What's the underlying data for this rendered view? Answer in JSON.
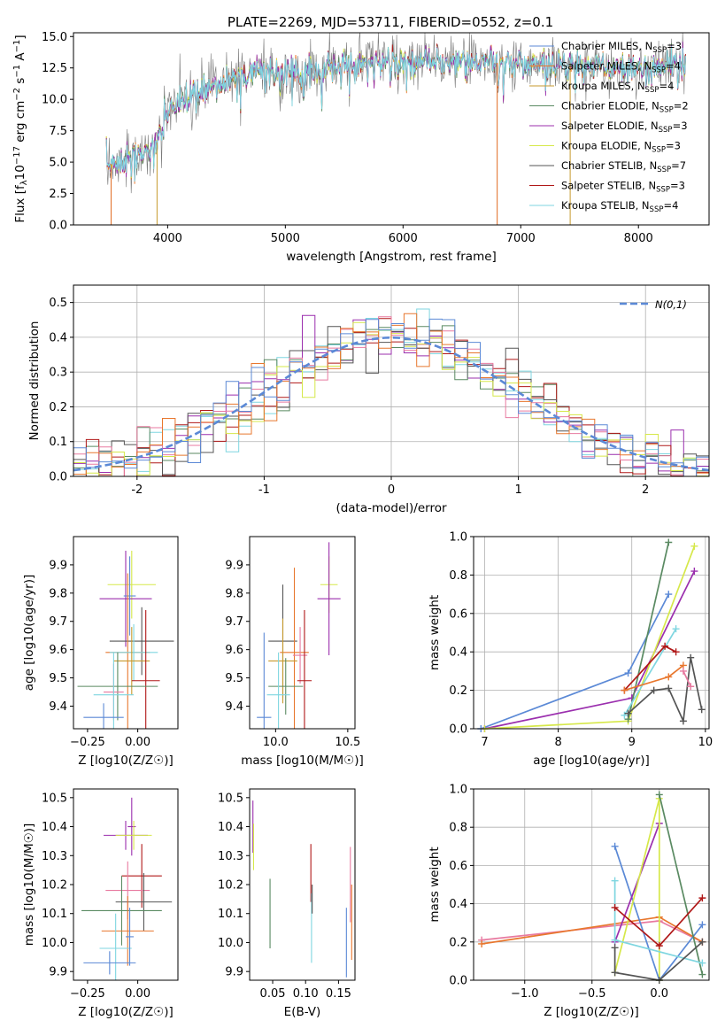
{
  "figure": {
    "title": "PLATE=2269, MJD=53711, FIBERID=0552, z=0.1"
  },
  "models": [
    {
      "name": "Chabrier MILES, N_SSP=3",
      "color": "#5b89d6"
    },
    {
      "name": "Salpeter MILES, N_SSP=4",
      "color": "#e8772e"
    },
    {
      "name": "Kroupa MILES, N_SSP=4",
      "color": "#c79a2e"
    },
    {
      "name": "Chabrier ELODIE, N_SSP=2",
      "color": "#5a8a62"
    },
    {
      "name": "Salpeter ELODIE, N_SSP=3",
      "color": "#9b2fae"
    },
    {
      "name": "Kroupa ELODIE, N_SSP=3",
      "color": "#d6e84a"
    },
    {
      "name": "Chabrier STELIB, N_SSP=7",
      "color": "#555555"
    },
    {
      "name": "Salpeter STELIB, N_SSP=3",
      "color": "#b01818"
    },
    {
      "name": "Kroupa STELIB, N_SSP=4",
      "color": "#7fd6e0"
    }
  ],
  "extra_colors": {
    "pink": "#e87aa0",
    "orange2": "#e06a20"
  },
  "chart_data": [
    {
      "id": "spectrum",
      "type": "line",
      "xlabel": "wavelength [Angstrom, rest frame]",
      "ylabel": "Flux [f_λ 10^-17 erg cm^-2 s^-1 A^-1]",
      "xlim": [
        3200,
        8600
      ],
      "ylim": [
        0,
        15.3
      ],
      "xticks": [
        4000,
        5000,
        6000,
        7000,
        8000
      ],
      "yticks": [
        0.0,
        2.5,
        5.0,
        7.5,
        10.0,
        12.5,
        15.0
      ],
      "ytick_labels": [
        "0.0",
        "2.5",
        "5.0",
        "7.5",
        "10.0",
        "12.5",
        "15.0"
      ],
      "continuum": {
        "x": [
          3500,
          3700,
          3900,
          4000,
          4200,
          4400,
          4600,
          4800,
          5000,
          5200,
          5400,
          5600,
          5800,
          6000,
          6200,
          6400,
          6600,
          6800,
          7000,
          7200,
          7400,
          7600,
          7800,
          8000,
          8200,
          8400
        ],
        "y": [
          4.8,
          5.3,
          6.3,
          9.0,
          10.3,
          11.2,
          11.8,
          12.1,
          12.3,
          12.2,
          12.6,
          12.8,
          12.9,
          13.0,
          13.0,
          13.0,
          12.9,
          12.9,
          12.8,
          12.8,
          12.8,
          12.6,
          12.5,
          12.4,
          12.6,
          12.8
        ]
      },
      "spikes": [
        3520,
        3910,
        6800,
        7420
      ],
      "legend": "upper right"
    },
    {
      "id": "residuals",
      "type": "step-histogram",
      "xlabel": "(data-model)/error",
      "ylabel": "Normed distribution",
      "xlim": [
        -2.5,
        2.5
      ],
      "ylim": [
        0,
        0.55
      ],
      "xticks": [
        -2,
        -1,
        0,
        1,
        2
      ],
      "yticks": [
        0.0,
        0.1,
        0.2,
        0.3,
        0.4,
        0.5
      ],
      "ytick_labels": [
        "0.0",
        "0.1",
        "0.2",
        "0.3",
        "0.4",
        "0.5"
      ],
      "bin_width": 0.1,
      "reference_label": "N(0,1)",
      "legend": "upper right",
      "grid": true
    },
    {
      "id": "age-vs-Z",
      "type": "errorbar",
      "xlabel": "Z [log10(Z/Z☉)]",
      "ylabel": "age  [log10(age/yr)]",
      "xlim": [
        -0.32,
        0.2
      ],
      "ylim": [
        9.32,
        10.0
      ],
      "xticks": [
        -0.25,
        0.0
      ],
      "xtick_labels": [
        "−0.25",
        "0.00"
      ],
      "yticks": [
        9.4,
        9.5,
        9.6,
        9.7,
        9.8,
        9.9
      ],
      "ytick_labels": [
        "9.4",
        "9.5",
        "9.6",
        "9.7",
        "9.8",
        "9.9"
      ],
      "points": [
        {
          "x": -0.03,
          "y": 9.83,
          "xerr": 0.12,
          "yerr": 0.12,
          "c": 5
        },
        {
          "x": -0.06,
          "y": 9.78,
          "xerr": 0.13,
          "yerr": 0.17,
          "c": 4
        },
        {
          "x": -0.04,
          "y": 9.79,
          "xerr": 0.03,
          "yerr": 0.14,
          "c": 0
        },
        {
          "x": 0.02,
          "y": 9.63,
          "xerr": 0.16,
          "yerr": 0.12,
          "c": 6
        },
        {
          "x": -0.05,
          "y": 9.59,
          "xerr": 0.11,
          "yerr": 0.28,
          "c": 1
        },
        {
          "x": -0.02,
          "y": 9.59,
          "xerr": 0.12,
          "yerr": 0.1,
          "c": 8
        },
        {
          "x": -0.03,
          "y": 9.56,
          "xerr": 0.09,
          "yerr": 0.12,
          "c": 2
        },
        {
          "x": 0.04,
          "y": 9.49,
          "xerr": 0.07,
          "yerr": 0.25,
          "c": 7
        },
        {
          "x": -0.1,
          "y": 9.47,
          "xerr": 0.2,
          "yerr": 0.12,
          "c": 3
        },
        {
          "x": -0.12,
          "y": 9.45,
          "xerr": 0.05,
          "yerr": 0.1,
          "c": 9
        },
        {
          "x": -0.12,
          "y": 9.44,
          "xerr": 0.1,
          "yerr": 0.15,
          "c": 8
        },
        {
          "x": -0.17,
          "y": 9.36,
          "xerr": 0.1,
          "yerr": 0.05,
          "c": 0
        }
      ]
    },
    {
      "id": "age-vs-mass",
      "type": "errorbar",
      "xlabel": "mass [log10(M/M☉)]",
      "ylabel": "",
      "xlim": [
        9.82,
        10.55
      ],
      "ylim": [
        9.32,
        10.0
      ],
      "xticks": [
        10.0,
        10.5
      ],
      "xtick_labels": [
        "10.0",
        "10.5"
      ],
      "yticks": [
        9.4,
        9.5,
        9.6,
        9.7,
        9.8,
        9.9
      ],
      "ytick_labels": [
        "9.4",
        "9.5",
        "9.6",
        "9.7",
        "9.8",
        "9.9"
      ],
      "points": [
        {
          "x": 10.37,
          "y": 9.83,
          "xerr": 0.06,
          "yerr": 0.1,
          "c": 5
        },
        {
          "x": 10.37,
          "y": 9.78,
          "xerr": 0.08,
          "yerr": 0.2,
          "c": 4
        },
        {
          "x": 10.05,
          "y": 9.63,
          "xerr": 0.1,
          "yerr": 0.2,
          "c": 6
        },
        {
          "x": 10.13,
          "y": 9.59,
          "xerr": 0.1,
          "yerr": 0.3,
          "c": 1
        },
        {
          "x": 10.17,
          "y": 9.58,
          "xerr": 0.05,
          "yerr": 0.1,
          "c": 9
        },
        {
          "x": 10.05,
          "y": 9.56,
          "xerr": 0.1,
          "yerr": 0.15,
          "c": 2
        },
        {
          "x": 10.2,
          "y": 9.49,
          "xerr": 0.05,
          "yerr": 0.25,
          "c": 7
        },
        {
          "x": 10.07,
          "y": 9.47,
          "xerr": 0.12,
          "yerr": 0.1,
          "c": 3
        },
        {
          "x": 10.02,
          "y": 9.44,
          "xerr": 0.08,
          "yerr": 0.15,
          "c": 8
        },
        {
          "x": 9.92,
          "y": 9.36,
          "xerr": 0.05,
          "yerr": 0.3,
          "c": 0
        }
      ]
    },
    {
      "id": "weight-vs-age",
      "type": "line-markers",
      "xlabel": "age  [log10(age/yr)]",
      "ylabel": "mass weight",
      "xlim": [
        6.85,
        10.05
      ],
      "ylim": [
        0.0,
        1.0
      ],
      "xticks": [
        7,
        8,
        9,
        10
      ],
      "yticks": [
        0.0,
        0.2,
        0.4,
        0.6,
        0.8,
        1.0
      ],
      "ytick_labels": [
        "0.0",
        "0.2",
        "0.4",
        "0.6",
        "0.8",
        "1.0"
      ],
      "grid": true,
      "series": [
        {
          "c": 0,
          "x": [
            6.95,
            8.95,
            9.5
          ],
          "y": [
            0.0,
            0.29,
            0.7
          ]
        },
        {
          "c": 4,
          "x": [
            7.0,
            9.0,
            9.85
          ],
          "y": [
            0.0,
            0.16,
            0.82
          ]
        },
        {
          "c": 5,
          "x": [
            7.0,
            8.95,
            9.85
          ],
          "y": [
            0.0,
            0.04,
            0.95
          ]
        },
        {
          "c": 3,
          "x": [
            8.95,
            9.5
          ],
          "y": [
            0.05,
            0.97
          ]
        },
        {
          "c": 8,
          "x": [
            8.9,
            9.6
          ],
          "y": [
            0.07,
            0.52
          ]
        },
        {
          "c": 7,
          "x": [
            8.9,
            9.45,
            9.6
          ],
          "y": [
            0.2,
            0.43,
            0.4
          ]
        },
        {
          "c": 1,
          "x": [
            8.9,
            9.5,
            9.7
          ],
          "y": [
            0.2,
            0.27,
            0.33
          ]
        },
        {
          "c": 6,
          "x": [
            8.95,
            9.3,
            9.5,
            9.7,
            9.8,
            9.95
          ],
          "y": [
            0.08,
            0.2,
            0.21,
            0.04,
            0.37,
            0.1
          ]
        },
        {
          "c": 9,
          "x": [
            9.7,
            9.8
          ],
          "y": [
            0.3,
            0.22
          ]
        }
      ]
    },
    {
      "id": "mass-vs-Z",
      "type": "errorbar",
      "xlabel": "Z [log10(Z/Z☉)]",
      "ylabel": "mass [log10(M/M☉)]",
      "xlim": [
        -0.32,
        0.2
      ],
      "ylim": [
        9.87,
        10.53
      ],
      "xticks": [
        -0.25,
        0.0
      ],
      "xtick_labels": [
        "−0.25",
        "0.00"
      ],
      "yticks": [
        9.9,
        10.0,
        10.1,
        10.2,
        10.3,
        10.4,
        10.5
      ],
      "ytick_labels": [
        "9.9",
        "10.0",
        "10.1",
        "10.2",
        "10.3",
        "10.4",
        "10.5"
      ],
      "points": [
        {
          "x": -0.03,
          "y": 10.4,
          "xerr": 0.02,
          "yerr": 0.1,
          "c": 4
        },
        {
          "x": -0.06,
          "y": 10.37,
          "xerr": 0.11,
          "yerr": 0.05,
          "c": 4
        },
        {
          "x": -0.02,
          "y": 10.37,
          "xerr": 0.09,
          "yerr": 0.05,
          "c": 5
        },
        {
          "x": 0.02,
          "y": 10.23,
          "xerr": 0.1,
          "yerr": 0.11,
          "c": 7
        },
        {
          "x": -0.05,
          "y": 10.18,
          "xerr": 0.11,
          "yerr": 0.1,
          "c": 9
        },
        {
          "x": 0.03,
          "y": 10.14,
          "xerr": 0.14,
          "yerr": 0.1,
          "c": 6
        },
        {
          "x": -0.08,
          "y": 10.11,
          "xerr": 0.2,
          "yerr": 0.12,
          "c": 3
        },
        {
          "x": -0.05,
          "y": 10.04,
          "xerr": 0.13,
          "yerr": 0.12,
          "c": 1
        },
        {
          "x": -0.11,
          "y": 9.98,
          "xerr": 0.08,
          "yerr": 0.12,
          "c": 8
        },
        {
          "x": -0.14,
          "y": 9.93,
          "xerr": 0.13,
          "yerr": 0.04,
          "c": 0
        },
        {
          "x": -0.04,
          "y": 10.02,
          "xerr": 0.02,
          "yerr": 0.1,
          "c": 0
        }
      ]
    },
    {
      "id": "mass-vs-EBV",
      "type": "errorbar",
      "xlabel": "E(B-V)",
      "ylabel": "",
      "xlim": [
        0.015,
        0.175
      ],
      "ylim": [
        9.87,
        10.53
      ],
      "xticks": [
        0.05,
        0.1,
        0.15
      ],
      "xtick_labels": [
        "0.05",
        "0.10",
        "0.15"
      ],
      "yticks": [
        9.9,
        10.0,
        10.1,
        10.2,
        10.3,
        10.4,
        10.5
      ],
      "ytick_labels": [
        "9.9",
        "10.0",
        "10.1",
        "10.2",
        "10.3",
        "10.4",
        "10.5"
      ],
      "points": [
        {
          "x": 0.02,
          "y": 10.4,
          "xerr": 0.0,
          "yerr": 0.09,
          "c": 4
        },
        {
          "x": 0.021,
          "y": 10.33,
          "xerr": 0.0,
          "yerr": 0.08,
          "c": 5
        },
        {
          "x": 0.046,
          "y": 10.1,
          "xerr": 0.0,
          "yerr": 0.12,
          "c": 3
        },
        {
          "x": 0.108,
          "y": 10.24,
          "xerr": 0.0,
          "yerr": 0.1,
          "c": 7
        },
        {
          "x": 0.109,
          "y": 10.05,
          "xerr": 0.0,
          "yerr": 0.12,
          "c": 8
        },
        {
          "x": 0.11,
          "y": 10.15,
          "xerr": 0.0,
          "yerr": 0.05,
          "c": 6
        },
        {
          "x": 0.162,
          "y": 10.0,
          "xerr": 0.0,
          "yerr": 0.12,
          "c": 0
        },
        {
          "x": 0.168,
          "y": 10.2,
          "xerr": 0.0,
          "yerr": 0.13,
          "c": 9
        },
        {
          "x": 0.17,
          "y": 10.07,
          "xerr": 0.0,
          "yerr": 0.13,
          "c": 1
        }
      ]
    },
    {
      "id": "weight-vs-Z",
      "type": "line-markers",
      "xlabel": "Z [log10(Z/Z☉)]",
      "ylabel": "mass weight",
      "xlim": [
        -1.38,
        0.37
      ],
      "ylim": [
        0.0,
        1.0
      ],
      "xticks": [
        -1.0,
        -0.5,
        0.0
      ],
      "xtick_labels": [
        "−1.0",
        "−0.5",
        "0.0"
      ],
      "yticks": [
        0.0,
        0.2,
        0.4,
        0.6,
        0.8,
        1.0
      ],
      "ytick_labels": [
        "0.0",
        "0.2",
        "0.4",
        "0.6",
        "0.8",
        "1.0"
      ],
      "grid": true,
      "series": [
        {
          "c": 9,
          "x": [
            -1.32,
            0.0,
            0.32
          ],
          "y": [
            0.21,
            0.31,
            0.2
          ]
        },
        {
          "c": 1,
          "x": [
            -1.32,
            0.0,
            0.32
          ],
          "y": [
            0.19,
            0.33,
            0.2
          ]
        },
        {
          "c": 0,
          "x": [
            -0.33,
            0.0,
            0.32
          ],
          "y": [
            0.7,
            0.0,
            0.29
          ]
        },
        {
          "c": 4,
          "x": [
            -0.33,
            0.0
          ],
          "y": [
            0.2,
            0.82
          ]
        },
        {
          "c": 5,
          "x": [
            -0.33,
            0.0,
            0.0
          ],
          "y": [
            0.04,
            0.95,
            0.0
          ]
        },
        {
          "c": 3,
          "x": [
            0.0,
            0.32
          ],
          "y": [
            0.97,
            0.03
          ]
        },
        {
          "c": 8,
          "x": [
            -0.33,
            -0.33,
            0.32
          ],
          "y": [
            0.52,
            0.21,
            0.09
          ]
        },
        {
          "c": 7,
          "x": [
            -0.33,
            0.0,
            0.32
          ],
          "y": [
            0.38,
            0.18,
            0.43
          ]
        },
        {
          "c": 6,
          "x": [
            -0.33,
            -0.33,
            0.0,
            0.32
          ],
          "y": [
            0.17,
            0.04,
            0.0,
            0.2
          ]
        }
      ]
    }
  ]
}
